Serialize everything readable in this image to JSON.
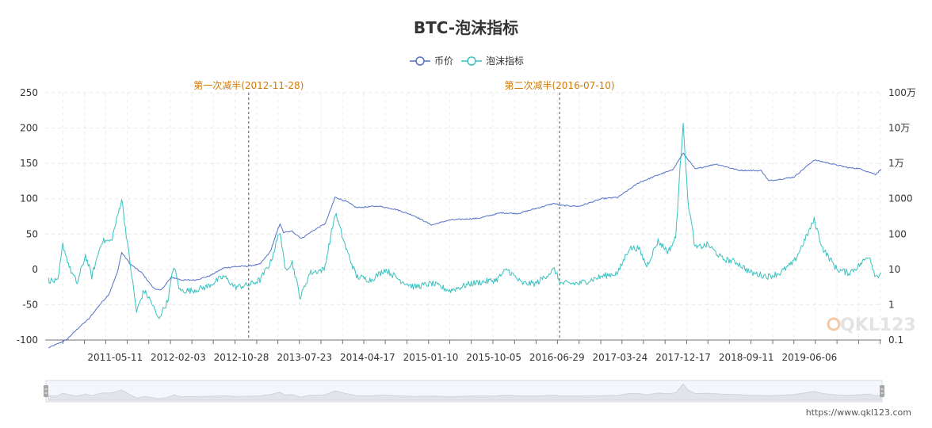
{
  "chart_data": {
    "type": "line",
    "title": "BTC-泡沫指标",
    "legend": {
      "position": "top-center",
      "items": [
        "币价",
        "泡沫指标"
      ]
    },
    "left_axis": {
      "min": -100,
      "max": 250,
      "ticks": [
        "250",
        "200",
        "150",
        "100",
        "50",
        "0",
        "-50",
        "-100"
      ]
    },
    "right_axis": {
      "scale": "log",
      "ticks": [
        "100万",
        "10万",
        "1万",
        "1000",
        "100",
        "10",
        "1",
        "0.1"
      ]
    },
    "x_axis_labels": [
      "2011-05-11",
      "2012-02-03",
      "2012-10-28",
      "2013-07-23",
      "2014-04-17",
      "2015-01-10",
      "2015-10-05",
      "2016-06-29",
      "2017-03-24",
      "2017-12-17",
      "2018-09-11",
      "2019-06-06"
    ],
    "grid": true,
    "halvings": [
      {
        "label": "第一次减半(2012-11-28)",
        "date": "2012-11-28"
      },
      {
        "label": "第二次减半(2016-07-10)",
        "date": "2016-07-10"
      }
    ],
    "series": [
      {
        "name": "币价",
        "color": "#5470c6",
        "axis": "right-log",
        "points": [
          [
            "2010-08-01",
            0.06
          ],
          [
            "2010-10-15",
            0.1
          ],
          [
            "2010-12-15",
            0.25
          ],
          [
            "2011-01-20",
            0.4
          ],
          [
            "2011-03-01",
            0.9
          ],
          [
            "2011-04-15",
            2
          ],
          [
            "2011-05-20",
            8
          ],
          [
            "2011-06-08",
            30
          ],
          [
            "2011-07-15",
            14
          ],
          [
            "2011-09-01",
            8
          ],
          [
            "2011-10-20",
            3
          ],
          [
            "2011-11-20",
            2.5
          ],
          [
            "2012-01-05",
            6
          ],
          [
            "2012-02-20",
            5
          ],
          [
            "2012-04-15",
            5
          ],
          [
            "2012-06-15",
            6.5
          ],
          [
            "2012-08-15",
            11
          ],
          [
            "2012-10-01",
            12
          ],
          [
            "2012-11-28",
            12.4
          ],
          [
            "2013-01-15",
            14
          ],
          [
            "2013-02-28",
            32
          ],
          [
            "2013-04-10",
            200
          ],
          [
            "2013-04-25",
            110
          ],
          [
            "2013-06-01",
            120
          ],
          [
            "2013-07-10",
            75
          ],
          [
            "2013-08-25",
            120
          ],
          [
            "2013-10-20",
            200
          ],
          [
            "2013-11-30",
            1100
          ],
          [
            "2014-01-15",
            850
          ],
          [
            "2014-03-01",
            560
          ],
          [
            "2014-06-01",
            620
          ],
          [
            "2014-08-15",
            500
          ],
          [
            "2014-11-01",
            330
          ],
          [
            "2015-01-14",
            180
          ],
          [
            "2015-04-01",
            250
          ],
          [
            "2015-08-01",
            280
          ],
          [
            "2015-11-05",
            400
          ],
          [
            "2016-01-15",
            380
          ],
          [
            "2016-06-18",
            740
          ],
          [
            "2016-07-10",
            650
          ],
          [
            "2016-10-01",
            610
          ],
          [
            "2017-01-05",
            1000
          ],
          [
            "2017-03-15",
            1100
          ],
          [
            "2017-06-10",
            2800
          ],
          [
            "2017-09-01",
            4700
          ],
          [
            "2017-11-01",
            6500
          ],
          [
            "2017-12-17",
            19500
          ],
          [
            "2018-02-06",
            6900
          ],
          [
            "2018-05-05",
            9600
          ],
          [
            "2018-08-10",
            6400
          ],
          [
            "2018-11-14",
            6200
          ],
          [
            "2018-12-15",
            3200
          ],
          [
            "2019-04-01",
            4100
          ],
          [
            "2019-06-26",
            12500
          ],
          [
            "2019-09-01",
            10000
          ],
          [
            "2019-11-20",
            7500
          ],
          [
            "2020-01-01",
            7200
          ],
          [
            "2020-03-13",
            4900
          ],
          [
            "2020-04-05",
            6800
          ]
        ]
      },
      {
        "name": "泡沫指标",
        "color": "#37c2c0",
        "axis": "left",
        "points": [
          [
            "2010-08-01",
            -15
          ],
          [
            "2010-09-10",
            -18
          ],
          [
            "2010-10-01",
            35
          ],
          [
            "2010-11-01",
            0
          ],
          [
            "2010-12-01",
            -20
          ],
          [
            "2011-01-05",
            20
          ],
          [
            "2011-02-01",
            -10
          ],
          [
            "2011-03-15",
            40
          ],
          [
            "2011-04-25",
            40
          ],
          [
            "2011-05-25",
            80
          ],
          [
            "2011-06-08",
            100
          ],
          [
            "2011-07-01",
            40
          ],
          [
            "2011-08-10",
            -60
          ],
          [
            "2011-09-10",
            -30
          ],
          [
            "2011-10-10",
            -45
          ],
          [
            "2011-11-10",
            -70
          ],
          [
            "2011-12-20",
            -45
          ],
          [
            "2012-01-15",
            5
          ],
          [
            "2012-02-10",
            -30
          ],
          [
            "2012-04-01",
            -30
          ],
          [
            "2012-06-01",
            -25
          ],
          [
            "2012-08-15",
            -10
          ],
          [
            "2012-10-01",
            -25
          ],
          [
            "2012-11-28",
            -22
          ],
          [
            "2013-01-15",
            -15
          ],
          [
            "2013-03-01",
            10
          ],
          [
            "2013-04-10",
            55
          ],
          [
            "2013-05-01",
            0
          ],
          [
            "2013-06-01",
            10
          ],
          [
            "2013-07-05",
            -40
          ],
          [
            "2013-08-15",
            -5
          ],
          [
            "2013-10-15",
            0
          ],
          [
            "2013-12-01",
            80
          ],
          [
            "2014-01-15",
            30
          ],
          [
            "2014-03-01",
            -10
          ],
          [
            "2014-05-01",
            -15
          ],
          [
            "2014-07-01",
            0
          ],
          [
            "2014-09-01",
            -15
          ],
          [
            "2014-11-01",
            -25
          ],
          [
            "2015-01-15",
            -20
          ],
          [
            "2015-04-01",
            -30
          ],
          [
            "2015-07-01",
            -20
          ],
          [
            "2015-10-15",
            -15
          ],
          [
            "2015-12-01",
            0
          ],
          [
            "2016-02-01",
            -20
          ],
          [
            "2016-04-01",
            -20
          ],
          [
            "2016-06-18",
            0
          ],
          [
            "2016-07-15",
            -20
          ],
          [
            "2016-10-01",
            -20
          ],
          [
            "2017-01-05",
            -10
          ],
          [
            "2017-03-15",
            -5
          ],
          [
            "2017-05-01",
            30
          ],
          [
            "2017-06-10",
            30
          ],
          [
            "2017-07-15",
            5
          ],
          [
            "2017-09-01",
            40
          ],
          [
            "2017-10-15",
            25
          ],
          [
            "2017-11-15",
            45
          ],
          [
            "2017-12-17",
            210
          ],
          [
            "2018-01-05",
            100
          ],
          [
            "2018-02-06",
            30
          ],
          [
            "2018-04-01",
            35
          ],
          [
            "2018-06-01",
            15
          ],
          [
            "2018-08-01",
            10
          ],
          [
            "2018-10-01",
            -5
          ],
          [
            "2018-12-15",
            -10
          ],
          [
            "2019-02-01",
            -5
          ],
          [
            "2019-04-01",
            10
          ],
          [
            "2019-05-15",
            40
          ],
          [
            "2019-06-26",
            70
          ],
          [
            "2019-08-01",
            30
          ],
          [
            "2019-10-01",
            0
          ],
          [
            "2019-11-20",
            -5
          ],
          [
            "2020-01-01",
            5
          ],
          [
            "2020-02-15",
            20
          ],
          [
            "2020-03-13",
            -10
          ],
          [
            "2020-04-05",
            -5
          ]
        ]
      }
    ]
  },
  "datazoom": {
    "start": 0,
    "end": 100
  },
  "watermark": "QKL123",
  "url": "https://www.qkl123.com"
}
